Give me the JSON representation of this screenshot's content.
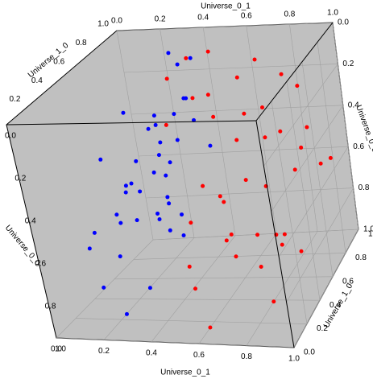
{
  "chart_data": {
    "type": "scatter3d",
    "xlabel": "Universe_0_1",
    "ylabel": "Universe_1_0",
    "zlabel": "Universe_0_0",
    "xlim": [
      0,
      1
    ],
    "ylim": [
      0,
      1
    ],
    "zlim": [
      0,
      1
    ],
    "xticks": [
      {
        "value": 0,
        "label": "0.0"
      },
      {
        "value": 0.2,
        "label": "0.2"
      },
      {
        "value": 0.4,
        "label": "0.4"
      },
      {
        "value": 0.6,
        "label": "0.6"
      },
      {
        "value": 0.8,
        "label": "0.8"
      },
      {
        "value": 1,
        "label": "1.0"
      }
    ],
    "yticks": [
      {
        "value": 0,
        "label": "0.0"
      },
      {
        "value": 0.2,
        "label": "0.2"
      },
      {
        "value": 0.4,
        "label": "0.4"
      },
      {
        "value": 0.6,
        "label": "0.6"
      },
      {
        "value": 0.8,
        "label": "0.8"
      },
      {
        "value": 1,
        "label": "1.0"
      }
    ],
    "zticks": [
      {
        "value": 0,
        "label": "0.0"
      },
      {
        "value": 0.2,
        "label": "0.2"
      },
      {
        "value": 0.4,
        "label": "0.4"
      },
      {
        "value": 0.6,
        "label": "0.6"
      },
      {
        "value": 0.8,
        "label": "0.8"
      },
      {
        "value": 1,
        "label": "1.0"
      }
    ],
    "grid": true,
    "series": [
      {
        "color": "#ff0000",
        "x": [
          0.55,
          0.62,
          0.71,
          0.8,
          0.9,
          0.95,
          0.58,
          0.66,
          0.75,
          0.85,
          0.92,
          0.6,
          0.7,
          0.78,
          0.88,
          0.97,
          0.52,
          0.64,
          0.73,
          0.83,
          0.93,
          0.57,
          0.69,
          0.81,
          0.9,
          0.35,
          0.4,
          0.45,
          0.3,
          0.5,
          0.62,
          0.77,
          0.86,
          0.68,
          0.74,
          0.98,
          0.48,
          0.59,
          0.84,
          0.91
        ],
        "y": [
          0.2,
          0.5,
          0.8,
          0.3,
          0.6,
          0.9,
          0.1,
          0.4,
          0.7,
          0.15,
          0.45,
          0.85,
          0.25,
          0.55,
          0.95,
          0.35,
          0.65,
          0.05,
          0.75,
          0.5,
          0.2,
          0.9,
          0.3,
          0.6,
          0.8,
          0.9,
          0.95,
          0.7,
          0.8,
          0.3,
          0.1,
          0.4,
          0.7,
          0.6,
          0.2,
          0.5,
          0.85,
          0.35,
          0.9,
          0.1
        ],
        "z": [
          0.1,
          0.2,
          0.3,
          0.4,
          0.5,
          0.6,
          0.7,
          0.8,
          0.9,
          0.15,
          0.25,
          0.35,
          0.45,
          0.55,
          0.65,
          0.75,
          0.85,
          0.95,
          0.05,
          0.3,
          0.6,
          0.2,
          0.5,
          0.8,
          0.4,
          0.1,
          0.3,
          0.2,
          0.15,
          0.9,
          0.5,
          0.7,
          0.1,
          0.95,
          0.6,
          0.35,
          0.05,
          0.45,
          0.25,
          0.85
        ]
      },
      {
        "color": "#0000ff",
        "x": [
          0.2,
          0.25,
          0.3,
          0.35,
          0.4,
          0.22,
          0.28,
          0.33,
          0.38,
          0.43,
          0.18,
          0.24,
          0.31,
          0.36,
          0.41,
          0.15,
          0.27,
          0.34,
          0.39,
          0.21,
          0.26,
          0.32,
          0.37,
          0.44,
          0.12,
          0.29,
          0.35,
          0.42,
          0.23,
          0.3,
          0.36,
          0.1,
          0.2,
          0.33,
          0.47,
          0.25,
          0.38,
          0.16,
          0.28,
          0.4
        ],
        "y": [
          0.3,
          0.5,
          0.7,
          0.4,
          0.6,
          0.8,
          0.2,
          0.45,
          0.65,
          0.35,
          0.55,
          0.75,
          0.25,
          0.5,
          0.7,
          0.4,
          0.6,
          0.3,
          0.8,
          0.1,
          0.45,
          0.55,
          0.9,
          0.35,
          0.5,
          0.65,
          0.2,
          0.7,
          0.4,
          0.85,
          0.6,
          0.3,
          0.05,
          0.5,
          0.75,
          0.15,
          0.45,
          0.6,
          0.95,
          0.5
        ],
        "z": [
          0.3,
          0.4,
          0.5,
          0.6,
          0.35,
          0.45,
          0.55,
          0.65,
          0.25,
          0.5,
          0.7,
          0.3,
          0.4,
          0.6,
          0.2,
          0.8,
          0.5,
          0.45,
          0.35,
          0.55,
          0.15,
          0.75,
          0.1,
          0.4,
          0.65,
          0.3,
          0.85,
          0.2,
          0.5,
          0.05,
          0.7,
          0.9,
          0.6,
          0.25,
          0.45,
          0.95,
          0.35,
          0.55,
          0.15,
          0.75
        ]
      }
    ]
  }
}
